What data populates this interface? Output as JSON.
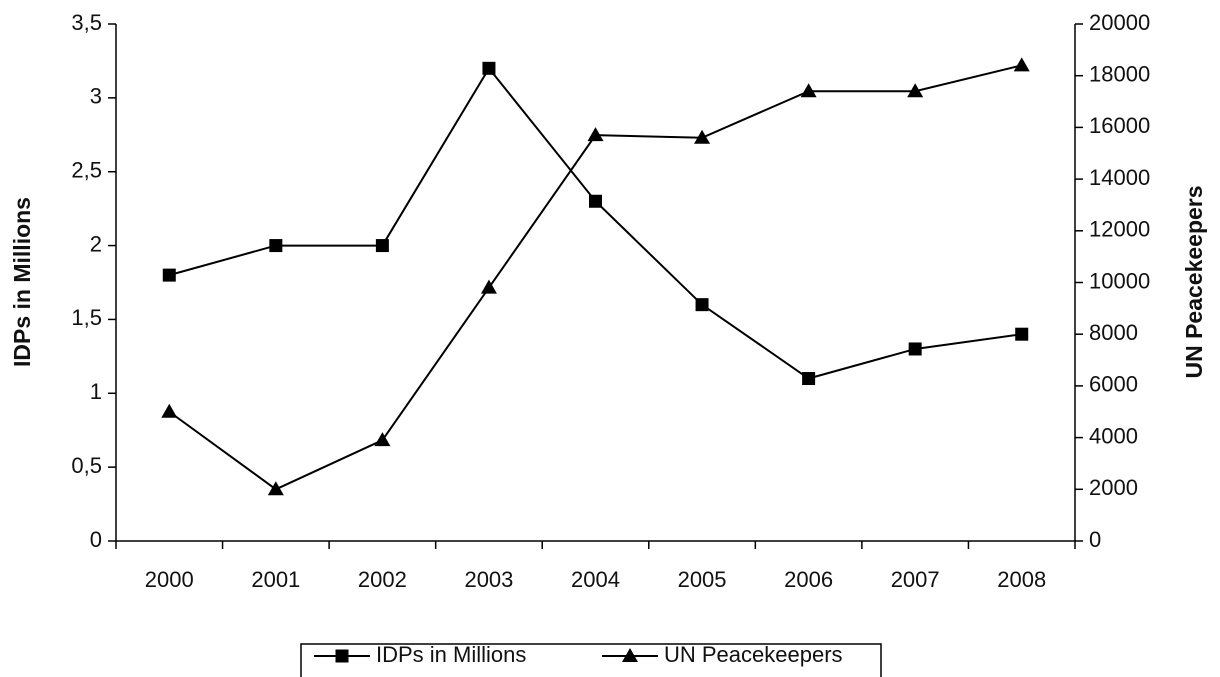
{
  "chart_data": {
    "type": "line",
    "categories": [
      "2000",
      "2001",
      "2002",
      "2003",
      "2004",
      "2005",
      "2006",
      "2007",
      "2008"
    ],
    "ylabel": "IDPs in Millions",
    "y2label": "UN Peacekeepers",
    "ylim": [
      0,
      3.5
    ],
    "yticks": [
      0,
      {
        "value": 0.5,
        "label": "0,5"
      },
      1,
      {
        "value": 1.5,
        "label": "1,5"
      },
      2,
      {
        "value": 2.5,
        "label": "2,5"
      },
      3,
      {
        "value": 3.5,
        "label": "3,5"
      }
    ],
    "y2lim": [
      0,
      20000
    ],
    "y2ticks": [
      0,
      2000,
      4000,
      6000,
      8000,
      10000,
      12000,
      14000,
      16000,
      18000,
      20000
    ],
    "grid": false,
    "legend": "bottom",
    "series": [
      {
        "name": "IDPs in Millions",
        "color": "#000000",
        "marker": "square",
        "values": [
          1.8,
          2.0,
          2.0,
          3.2,
          2.3,
          1.6,
          1.1,
          1.3,
          1.4
        ]
      },
      {
        "name": "UN Peacekeepers",
        "color": "#000000",
        "marker": "triangle",
        "axis": "y2",
        "values": [
          5000,
          2000,
          3900,
          9800,
          15700,
          15600,
          17400,
          17400,
          18400
        ]
      }
    ]
  }
}
